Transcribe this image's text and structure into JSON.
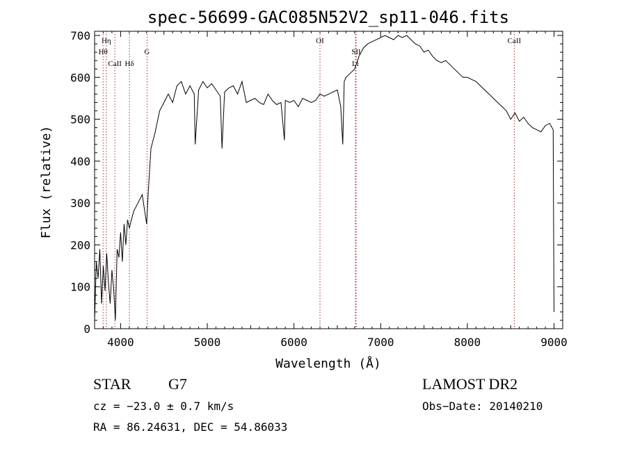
{
  "chart_data": {
    "type": "line",
    "title": "spec-56699-GAC085N52V2_sp11-046.fits",
    "xlabel": "Wavelength (Å)",
    "ylabel": "Flux (relative)",
    "xlim": [
      3700,
      9100
    ],
    "ylim": [
      0,
      710
    ],
    "xticks": [
      4000,
      5000,
      6000,
      7000,
      8000,
      9000
    ],
    "yticks": [
      0,
      100,
      200,
      300,
      400,
      500,
      600,
      700
    ],
    "grid": false,
    "line_color": "#000000",
    "marker_color": "#a52a2a",
    "lines": [
      {
        "name": "CaII",
        "x": 3934,
        "row": 3
      },
      {
        "name": "Hη",
        "x": 3835,
        "row": 1
      },
      {
        "name": "Hθ",
        "x": 3798,
        "row": 2
      },
      {
        "name": "Hδ",
        "x": 4102,
        "row": 3
      },
      {
        "name": "G",
        "x": 4305,
        "row": 2
      },
      {
        "name": "OI",
        "x": 6300,
        "row": 1
      },
      {
        "name": "SII",
        "x": 6717,
        "row": 2
      },
      {
        "name": "Li",
        "x": 6708,
        "row": 3
      },
      {
        "name": "CaII",
        "x": 8542,
        "row": 1
      }
    ],
    "spectrum": {
      "x": [
        3700,
        3720,
        3740,
        3760,
        3780,
        3800,
        3820,
        3840,
        3860,
        3880,
        3900,
        3920,
        3940,
        3960,
        3980,
        4000,
        4020,
        4040,
        4060,
        4080,
        4100,
        4150,
        4200,
        4250,
        4300,
        4320,
        4350,
        4400,
        4450,
        4500,
        4550,
        4600,
        4650,
        4700,
        4750,
        4800,
        4850,
        4860,
        4900,
        4950,
        5000,
        5050,
        5100,
        5150,
        5170,
        5200,
        5250,
        5300,
        5350,
        5400,
        5450,
        5500,
        5550,
        5600,
        5650,
        5700,
        5750,
        5800,
        5850,
        5890,
        5900,
        5950,
        6000,
        6050,
        6100,
        6150,
        6200,
        6250,
        6300,
        6350,
        6400,
        6450,
        6500,
        6540,
        6563,
        6580,
        6600,
        6650,
        6700,
        6750,
        6800,
        6850,
        6900,
        6950,
        7000,
        7050,
        7100,
        7150,
        7200,
        7250,
        7300,
        7350,
        7400,
        7450,
        7500,
        7550,
        7600,
        7650,
        7700,
        7750,
        7800,
        7850,
        7900,
        7950,
        8000,
        8050,
        8100,
        8150,
        8200,
        8250,
        8300,
        8350,
        8400,
        8450,
        8500,
        8550,
        8600,
        8650,
        8700,
        8750,
        8800,
        8850,
        8900,
        8950,
        8990,
        9000
      ],
      "y": [
        20,
        160,
        120,
        190,
        60,
        150,
        90,
        180,
        110,
        60,
        140,
        95,
        20,
        190,
        170,
        230,
        160,
        250,
        200,
        260,
        240,
        280,
        300,
        320,
        250,
        330,
        430,
        470,
        520,
        540,
        560,
        540,
        580,
        590,
        560,
        580,
        560,
        440,
        570,
        590,
        575,
        585,
        570,
        555,
        430,
        565,
        575,
        580,
        560,
        590,
        540,
        545,
        550,
        540,
        535,
        560,
        545,
        535,
        540,
        450,
        545,
        540,
        545,
        530,
        550,
        545,
        540,
        545,
        560,
        555,
        560,
        565,
        570,
        530,
        440,
        590,
        600,
        610,
        620,
        650,
        670,
        680,
        685,
        690,
        695,
        700,
        695,
        690,
        700,
        695,
        700,
        690,
        680,
        675,
        660,
        665,
        650,
        640,
        635,
        640,
        630,
        620,
        610,
        600,
        600,
        595,
        590,
        580,
        570,
        560,
        550,
        540,
        530,
        520,
        500,
        515,
        495,
        505,
        490,
        480,
        475,
        470,
        485,
        490,
        475,
        40
      ]
    }
  },
  "footer": {
    "object_class": "STAR",
    "subclass": "G7",
    "survey": "LAMOST DR2",
    "redshift": "cz = −23.0 ± 0.7 km/s",
    "obs_date": "Obs−Date: 20140210",
    "coords": "RA =  86.24631, DEC =  54.86033"
  }
}
